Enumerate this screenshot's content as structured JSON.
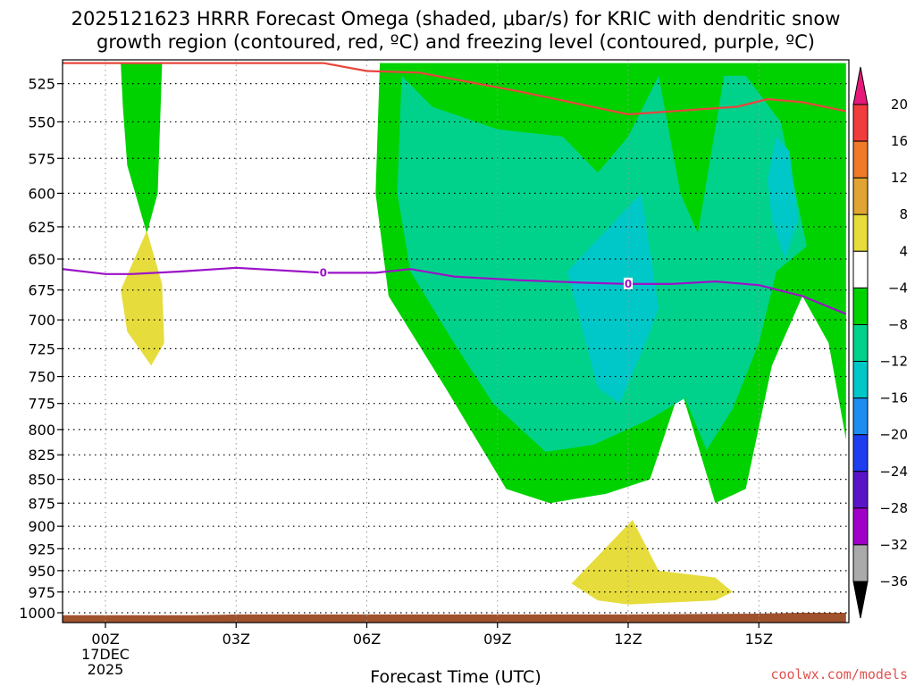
{
  "title_line1": "2025121623 HRRR Forecast Omega (shaded, μbar/s) for KRIC with dendritic snow",
  "title_line2": "growth region (contoured, red, ºC) and freezing level (contoured, purple, ºC)",
  "credit": "coolwx.com/models",
  "chart_data": {
    "type": "area",
    "title": "2025121623 HRRR Forecast Omega (shaded, μbar/s) for KRIC with dendritic snow growth region (contoured, red, ºC) and freezing level (contoured, purple, ºC)",
    "xlabel": "Forecast Time (UTC)",
    "ylabel": "",
    "x_units": "hours from 2025121700Z",
    "xlim": [
      -1,
      17
    ],
    "ylim": [
      1012,
      510
    ],
    "y_scale": "log-pressure",
    "x_ticks": [
      {
        "x": 0,
        "label": "00Z",
        "date_line1": "17DEC",
        "date_line2": "2025"
      },
      {
        "x": 3,
        "label": "03Z"
      },
      {
        "x": 6,
        "label": "06Z"
      },
      {
        "x": 9,
        "label": "09Z"
      },
      {
        "x": 12,
        "label": "12Z"
      },
      {
        "x": 15,
        "label": "15Z"
      }
    ],
    "y_ticks": [
      525,
      550,
      575,
      600,
      625,
      650,
      675,
      700,
      725,
      750,
      775,
      800,
      825,
      850,
      875,
      900,
      925,
      950,
      975,
      1000
    ],
    "grid": true,
    "colorbar": {
      "labels": [
        "20",
        "16",
        "12",
        "8",
        "4",
        "−4",
        "−8",
        "−12",
        "−16",
        "−20",
        "−24",
        "−28",
        "−32",
        "−36"
      ],
      "segments": [
        {
          "from": 16,
          "to": 20,
          "color": "#f03c3c"
        },
        {
          "from": 12,
          "to": 16,
          "color": "#ee7a2a"
        },
        {
          "from": 8,
          "to": 12,
          "color": "#e0a432"
        },
        {
          "from": 4,
          "to": 8,
          "color": "#e6dc3c"
        },
        {
          "from": -4,
          "to": 4,
          "color": "#ffffff"
        },
        {
          "from": -8,
          "to": -4,
          "color": "#00d200"
        },
        {
          "from": -12,
          "to": -8,
          "color": "#00d28c"
        },
        {
          "from": -16,
          "to": -12,
          "color": "#00c8c8"
        },
        {
          "from": -20,
          "to": -16,
          "color": "#1e8cf0"
        },
        {
          "from": -24,
          "to": -20,
          "color": "#1e3cf0"
        },
        {
          "from": -28,
          "to": -24,
          "color": "#5a14c8"
        },
        {
          "from": -32,
          "to": -28,
          "color": "#a000c8"
        },
        {
          "from": -36,
          "to": -32,
          "color": "#aaaaaa"
        }
      ],
      "top_arrow_color": "#e6197a",
      "bottom_arrow_color": "#000000"
    },
    "shaded_regions": [
      {
        "level": "-8 to -4",
        "color": "#00d200",
        "points": [
          [
            0.35,
            512
          ],
          [
            1.3,
            512
          ],
          [
            1.2,
            600
          ],
          [
            0.95,
            630
          ],
          [
            0.5,
            580
          ],
          [
            0.4,
            540
          ]
        ]
      },
      {
        "level": "-8 to -4",
        "color": "#00d200",
        "points": [
          [
            6.3,
            512
          ],
          [
            17,
            512
          ],
          [
            17,
            810
          ],
          [
            16.6,
            720
          ],
          [
            16,
            680
          ],
          [
            15.3,
            740
          ],
          [
            14.7,
            860
          ],
          [
            14,
            875
          ],
          [
            13.2,
            760
          ],
          [
            12.5,
            850
          ],
          [
            11.5,
            865
          ],
          [
            10.2,
            875
          ],
          [
            9.2,
            860
          ],
          [
            7.8,
            760
          ],
          [
            6.5,
            680
          ],
          [
            6.2,
            600
          ]
        ]
      },
      {
        "level": "-12 to -8",
        "color": "#00d28c",
        "points": [
          [
            6.8,
            520
          ],
          [
            7.5,
            540
          ],
          [
            9,
            555
          ],
          [
            10.5,
            560
          ],
          [
            11.3,
            585
          ],
          [
            12,
            560
          ],
          [
            12.7,
            520
          ],
          [
            13.2,
            600
          ],
          [
            13.6,
            630
          ],
          [
            14.2,
            520
          ],
          [
            14.7,
            520
          ],
          [
            15.5,
            550
          ],
          [
            16.1,
            640
          ],
          [
            15.4,
            660
          ],
          [
            15,
            720
          ],
          [
            14.4,
            780
          ],
          [
            13.8,
            820
          ],
          [
            13.3,
            770
          ],
          [
            12.5,
            790
          ],
          [
            11.2,
            815
          ],
          [
            10.1,
            822
          ],
          [
            8.9,
            775
          ],
          [
            8,
            720
          ],
          [
            7,
            660
          ],
          [
            6.7,
            600
          ]
        ]
      },
      {
        "level": "-16 to -12",
        "color": "#00c8c8",
        "points": [
          [
            12.3,
            600
          ],
          [
            10.6,
            660
          ],
          [
            11.3,
            760
          ],
          [
            11.8,
            775
          ],
          [
            12.4,
            720
          ],
          [
            12.7,
            690
          ]
        ]
      },
      {
        "level": "-16 to -12",
        "color": "#00c8c8",
        "points": [
          [
            15.4,
            560
          ],
          [
            15.7,
            570
          ],
          [
            15.9,
            620
          ],
          [
            15.6,
            650
          ],
          [
            15.3,
            620
          ],
          [
            15.2,
            590
          ]
        ]
      },
      {
        "level": "4 to 8",
        "color": "#e6dc3c",
        "points": [
          [
            0.95,
            628
          ],
          [
            1.3,
            670
          ],
          [
            1.35,
            720
          ],
          [
            1.05,
            740
          ],
          [
            0.5,
            710
          ],
          [
            0.35,
            675
          ]
        ]
      },
      {
        "level": "4 to 8",
        "color": "#e6dc3c",
        "points": [
          [
            12.1,
            893
          ],
          [
            12.7,
            950
          ],
          [
            14,
            958
          ],
          [
            14.4,
            975
          ],
          [
            14,
            985
          ],
          [
            12,
            990
          ],
          [
            11.3,
            985
          ],
          [
            10.7,
            965
          ]
        ]
      }
    ],
    "series": [
      {
        "name": "",
        "color": "#e8463c",
        "points": [
          [
            -1,
            512
          ],
          [
            0.3,
            512
          ],
          [
            1.2,
            512
          ],
          [
            5,
            512
          ],
          [
            6,
            517
          ],
          [
            7.2,
            518
          ],
          [
            9.5,
            530
          ],
          [
            12,
            545
          ],
          [
            14.5,
            540
          ],
          [
            15.2,
            535
          ],
          [
            16,
            537
          ],
          [
            17,
            543
          ]
        ]
      },
      {
        "name": "0",
        "color": "#9b12c8",
        "points": [
          [
            -1,
            658
          ],
          [
            0,
            662
          ],
          [
            0.6,
            662
          ],
          [
            1.7,
            660
          ],
          [
            3,
            657
          ],
          [
            5,
            661
          ],
          [
            6.2,
            661
          ],
          [
            7,
            658
          ],
          [
            8,
            664
          ],
          [
            9.5,
            667
          ],
          [
            11,
            669
          ],
          [
            12,
            670
          ],
          [
            13,
            670
          ],
          [
            14,
            668
          ],
          [
            15,
            671
          ],
          [
            16,
            680
          ],
          [
            17,
            695
          ]
        ]
      }
    ],
    "terrain": {
      "color": "#a0522d",
      "points": [
        [
          -1,
          1003
        ],
        [
          2,
          1003
        ],
        [
          3,
          1002
        ],
        [
          4.5,
          1002
        ],
        [
          6,
          1002
        ],
        [
          9,
          1002
        ],
        [
          12,
          1002
        ],
        [
          15,
          1001
        ],
        [
          16,
          1000
        ],
        [
          17,
          1000
        ]
      ]
    }
  }
}
